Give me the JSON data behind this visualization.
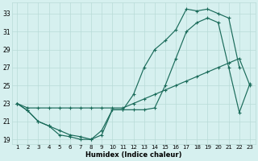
{
  "xlabel": "Humidex (Indice chaleur)",
  "background_color": "#d6f0ef",
  "grid_color": "#b8dbd8",
  "line_color": "#1a6b5a",
  "xlim": [
    0.5,
    23.5
  ],
  "ylim": [
    18.5,
    34.2
  ],
  "xticks": [
    1,
    2,
    3,
    4,
    5,
    6,
    7,
    8,
    9,
    10,
    11,
    12,
    13,
    14,
    15,
    16,
    17,
    18,
    19,
    20,
    21,
    22,
    23
  ],
  "yticks": [
    19,
    21,
    23,
    25,
    27,
    29,
    31,
    33
  ],
  "series1_x": [
    1,
    2,
    3,
    4,
    5,
    6,
    7,
    8,
    9,
    10,
    11,
    12,
    13,
    14,
    15,
    16,
    17,
    18,
    19,
    20,
    21,
    22,
    23
  ],
  "series1_y": [
    23,
    22.5,
    22.5,
    22.5,
    22.5,
    22.5,
    22.5,
    22.5,
    22.5,
    22.5,
    22.5,
    23,
    23.5,
    24,
    24.5,
    25,
    25.5,
    26,
    26.5,
    27,
    27.5,
    28,
    25
  ],
  "series2_x": [
    1,
    2,
    3,
    4,
    5,
    6,
    7,
    8,
    9,
    10,
    11,
    12,
    13,
    14,
    15,
    16,
    17,
    18,
    19,
    20,
    21,
    22,
    23
  ],
  "series2_y": [
    23,
    22.2,
    21,
    20.5,
    20,
    19.5,
    19.3,
    19,
    19.5,
    22.3,
    22.3,
    22.3,
    22.3,
    22.5,
    25,
    28,
    31,
    32,
    32.5,
    32,
    27,
    22,
    25.2
  ],
  "series3_x": [
    1,
    2,
    3,
    4,
    5,
    6,
    7,
    8,
    9,
    10,
    11,
    12,
    13,
    14,
    15,
    16,
    17,
    18,
    19,
    20,
    21,
    22,
    23
  ],
  "series3_y": [
    23,
    22.2,
    21,
    20.5,
    19.5,
    19.3,
    19,
    19,
    20,
    22.3,
    22.3,
    24,
    27,
    29,
    30,
    31.2,
    33.5,
    33.3,
    33.5,
    33,
    32.5,
    27,
    null
  ]
}
